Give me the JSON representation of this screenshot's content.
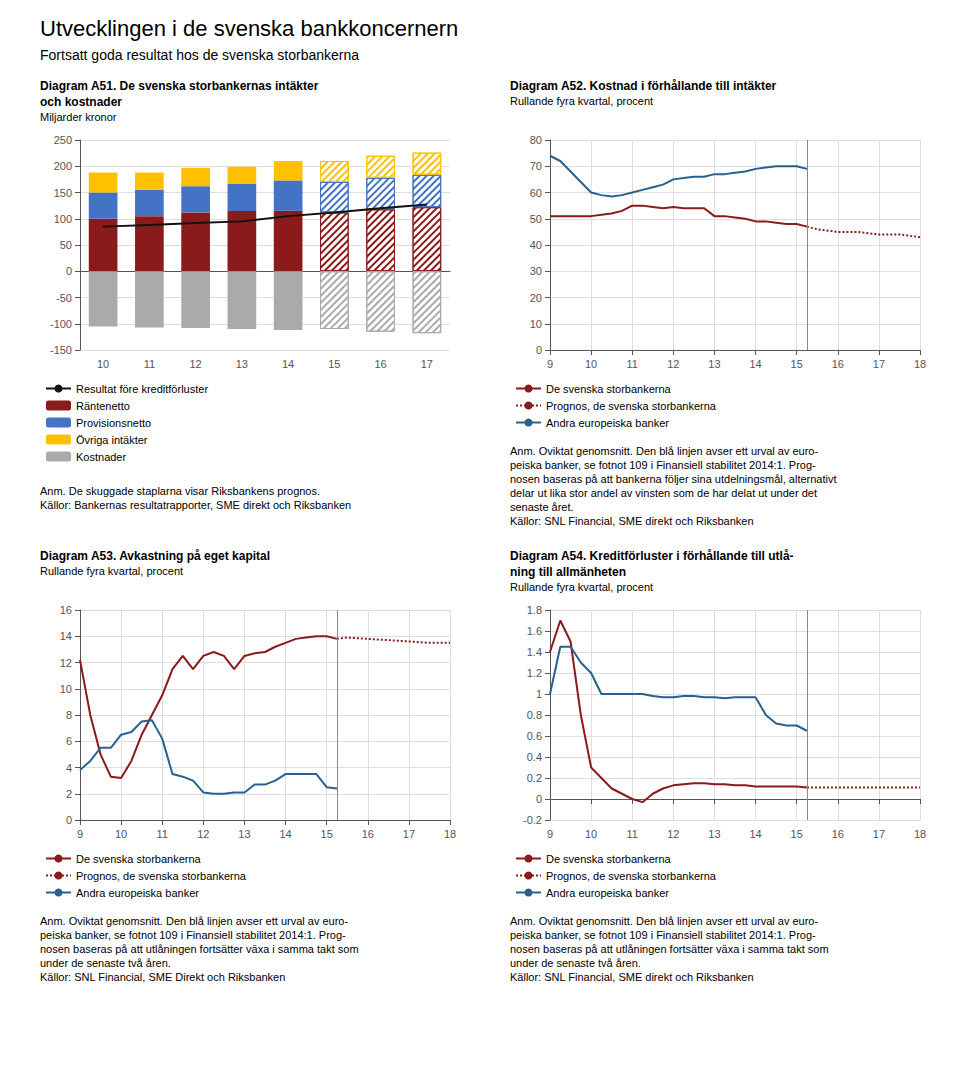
{
  "title": "Utvecklingen i de svenska bankkoncernern",
  "subtitle": "Fortsatt goda resultat hos de svenska storbankerna",
  "chart_data": [
    {
      "type": "bar",
      "title": "Diagram A51. De svenska storbankernas intäkter\noch kostnader",
      "subtitle": "Miljarder kronor",
      "categories": [
        "10",
        "11",
        "12",
        "13",
        "14",
        "15",
        "16",
        "17"
      ],
      "stacked": true,
      "forecast_from": "15",
      "series": [
        {
          "name": "Resultat före kreditförluster",
          "type": "line",
          "color": "#111111",
          "line_style": "solid",
          "values": [
            85,
            88,
            92,
            95,
            105,
            112,
            120,
            127
          ]
        },
        {
          "name": "Räntenetto",
          "color": "#8b1a1a",
          "values": [
            100,
            105,
            112,
            115,
            115,
            112,
            118,
            122
          ]
        },
        {
          "name": "Provisionsnetto",
          "color": "#4472c4",
          "values": [
            50,
            50,
            50,
            52,
            58,
            58,
            60,
            62
          ]
        },
        {
          "name": "Övriga intäkter",
          "color": "#ffc000",
          "values": [
            38,
            33,
            35,
            32,
            37,
            40,
            42,
            42
          ]
        },
        {
          "name": "Kostnader",
          "color": "#aaaaaa",
          "values": [
            -105,
            -107,
            -108,
            -110,
            -112,
            -110,
            -115,
            -118
          ]
        }
      ],
      "ylim": [
        -150,
        250
      ],
      "yticks": [
        -150,
        -100,
        -50,
        0,
        50,
        100,
        150,
        200,
        250
      ],
      "grid": "y",
      "legend": "bottom",
      "annotations": [
        "Anm. De skuggade staplarna visar Riksbankens prognos.",
        "Källor: Bankernas resultatrapporter, SME direkt och Riksbanken"
      ]
    },
    {
      "type": "line",
      "title": "Diagram A52. Kostnad i förhållande till intäkter",
      "subtitle": "Rullande fyra kvartal, procent",
      "forecast_from": 15.25,
      "series": [
        {
          "name": "De svenska storbankerna",
          "color": "#8b1a1a",
          "line_style": "solid",
          "x": [
            9.0,
            9.25,
            9.5,
            9.75,
            10.0,
            10.25,
            10.5,
            10.75,
            11.0,
            11.25,
            11.5,
            11.75,
            12.0,
            12.25,
            12.5,
            12.75,
            13.0,
            13.25,
            13.5,
            13.75,
            14.0,
            14.25,
            14.5,
            14.75,
            15.0,
            15.25
          ],
          "values": [
            51,
            51,
            51,
            51,
            51,
            51.5,
            52,
            53,
            55,
            55,
            54.5,
            54,
            54.5,
            54,
            54,
            54,
            51,
            51,
            50.5,
            50,
            49,
            49,
            48.5,
            48,
            48,
            47
          ]
        },
        {
          "name": "Prognos, de svenska storbankerna",
          "color": "#8b1a1a",
          "line_style": "dotted",
          "x": [
            15.25,
            15.5,
            16.0,
            16.5,
            17.0,
            17.5,
            18.0
          ],
          "values": [
            47,
            46,
            45,
            45,
            44,
            44,
            43
          ]
        },
        {
          "name": "Andra europeiska banker",
          "color": "#2a6090",
          "line_style": "solid",
          "x": [
            9.0,
            9.25,
            9.5,
            9.75,
            10.0,
            10.25,
            10.5,
            10.75,
            11.0,
            11.25,
            11.5,
            11.75,
            12.0,
            12.25,
            12.5,
            12.75,
            13.0,
            13.25,
            13.5,
            13.75,
            14.0,
            14.25,
            14.5,
            14.75,
            15.0,
            15.25
          ],
          "values": [
            74,
            72,
            68,
            64,
            60,
            59,
            58.5,
            59,
            60,
            61,
            62,
            63,
            65,
            65.5,
            66,
            66,
            67,
            67,
            67.5,
            68,
            69,
            69.5,
            70,
            70,
            70,
            69
          ]
        }
      ],
      "xlim": [
        9,
        18
      ],
      "xticks": [
        9,
        10,
        11,
        12,
        13,
        14,
        15,
        16,
        17,
        18
      ],
      "ylim": [
        0,
        80
      ],
      "yticks": [
        0,
        10,
        20,
        30,
        40,
        50,
        60,
        70,
        80
      ],
      "grid": true,
      "legend": "bottom",
      "annotations": [
        "Anm. Oviktat genomsnitt. Den blå linjen avser ett urval av euro-",
        "peiska banker, se fotnot 109 i Finansiell stabilitet 2014:1. Prog-",
        "nosen baseras på att bankerna följer sina utdelningsmål, alternativt",
        "delar ut lika stor andel av vinsten som de har delat ut under det",
        "senaste året.",
        "Källor: SNL Financial, SME direkt och Riksbanken"
      ]
    },
    {
      "type": "line",
      "title": "Diagram A53. Avkastning på eget kapital",
      "subtitle": "Rullande fyra kvartal, procent",
      "forecast_from": 15.25,
      "series": [
        {
          "name": "De svenska storbankerna",
          "color": "#8b1a1a",
          "line_style": "solid",
          "x": [
            9.0,
            9.25,
            9.5,
            9.75,
            10.0,
            10.25,
            10.5,
            10.75,
            11.0,
            11.25,
            11.5,
            11.75,
            12.0,
            12.25,
            12.5,
            12.75,
            13.0,
            13.25,
            13.5,
            13.75,
            14.0,
            14.25,
            14.5,
            14.75,
            15.0,
            15.25
          ],
          "values": [
            12.2,
            8.0,
            5.0,
            3.3,
            3.2,
            4.5,
            6.5,
            8.0,
            9.5,
            11.5,
            12.5,
            11.5,
            12.5,
            12.8,
            12.5,
            11.5,
            12.5,
            12.7,
            12.8,
            13.2,
            13.5,
            13.8,
            13.9,
            14.0,
            14.0,
            13.8
          ]
        },
        {
          "name": "Prognos, de svenska storbankerna",
          "color": "#8b1a1a",
          "line_style": "dotted",
          "x": [
            15.25,
            15.5,
            16.0,
            16.5,
            17.0,
            17.5,
            18.0
          ],
          "values": [
            13.8,
            13.9,
            13.8,
            13.7,
            13.6,
            13.5,
            13.5
          ]
        },
        {
          "name": "Andra europeiska banker",
          "color": "#2a6090",
          "line_style": "solid",
          "x": [
            9.0,
            9.25,
            9.5,
            9.75,
            10.0,
            10.25,
            10.5,
            10.75,
            11.0,
            11.25,
            11.5,
            11.75,
            12.0,
            12.25,
            12.5,
            12.75,
            13.0,
            13.25,
            13.5,
            13.75,
            14.0,
            14.25,
            14.5,
            14.75,
            15.0,
            15.25
          ],
          "values": [
            3.8,
            4.5,
            5.5,
            5.5,
            6.5,
            6.7,
            7.5,
            7.6,
            6.2,
            3.5,
            3.3,
            3.0,
            2.1,
            2.0,
            2.0,
            2.1,
            2.1,
            2.7,
            2.7,
            3.0,
            3.5,
            3.5,
            3.5,
            3.5,
            2.5,
            2.4
          ]
        }
      ],
      "xlim": [
        9,
        18
      ],
      "xticks": [
        9,
        10,
        11,
        12,
        13,
        14,
        15,
        16,
        17,
        18
      ],
      "ylim": [
        0,
        16
      ],
      "yticks": [
        0,
        2,
        4,
        6,
        8,
        10,
        12,
        14,
        16
      ],
      "grid": true,
      "legend": "bottom",
      "annotations": [
        "Anm. Oviktat genomsnitt. Den blå linjen avser ett urval av euro-",
        "peiska banker, se fotnot 109 i Finansiell stabilitet 2014:1. Prog-",
        "nosen baseras på att utlåningen fortsätter växa i samma takt som",
        "under de senaste två åren.",
        "Källor: SNL Financial, SME Direkt och Riksbanken"
      ]
    },
    {
      "type": "line",
      "title": "Diagram A54. Kreditförluster i förhållande till utlå-\nning till allmänheten",
      "subtitle": "Rullande fyra kvartal, procent",
      "forecast_from": 15.25,
      "series": [
        {
          "name": "De svenska storbankerna",
          "color": "#8b1a1a",
          "line_style": "solid",
          "x": [
            9.0,
            9.25,
            9.5,
            9.75,
            10.0,
            10.25,
            10.5,
            10.75,
            11.0,
            11.25,
            11.5,
            11.75,
            12.0,
            12.25,
            12.5,
            12.75,
            13.0,
            13.25,
            13.5,
            13.75,
            14.0,
            14.25,
            14.5,
            14.75,
            15.0,
            15.25
          ],
          "values": [
            1.4,
            1.7,
            1.5,
            0.8,
            0.3,
            0.2,
            0.1,
            0.05,
            0.0,
            -0.03,
            0.05,
            0.1,
            0.13,
            0.14,
            0.15,
            0.15,
            0.14,
            0.14,
            0.13,
            0.13,
            0.12,
            0.12,
            0.12,
            0.12,
            0.12,
            0.11
          ]
        },
        {
          "name": "Prognos, de svenska storbankerna",
          "color": "#8b1a1a",
          "line_style": "dotted",
          "x": [
            15.25,
            15.5,
            16.0,
            16.5,
            17.0,
            17.5,
            18.0
          ],
          "values": [
            0.11,
            0.11,
            0.11,
            0.11,
            0.11,
            0.11,
            0.11
          ]
        },
        {
          "name": "Andra europeiska banker",
          "color": "#2a6090",
          "line_style": "solid",
          "x": [
            9.0,
            9.25,
            9.5,
            9.75,
            10.0,
            10.25,
            10.5,
            10.75,
            11.0,
            11.25,
            11.5,
            11.75,
            12.0,
            12.25,
            12.5,
            12.75,
            13.0,
            13.25,
            13.5,
            13.75,
            14.0,
            14.25,
            14.5,
            14.75,
            15.0,
            15.25
          ],
          "values": [
            1.0,
            1.45,
            1.45,
            1.3,
            1.2,
            1.0,
            1.0,
            1.0,
            1.0,
            1.0,
            0.98,
            0.97,
            0.97,
            0.98,
            0.98,
            0.97,
            0.97,
            0.96,
            0.97,
            0.97,
            0.97,
            0.8,
            0.72,
            0.7,
            0.7,
            0.65
          ]
        }
      ],
      "xlim": [
        9,
        18
      ],
      "xticks": [
        9,
        10,
        11,
        12,
        13,
        14,
        15,
        16,
        17,
        18
      ],
      "ylim": [
        -0.2,
        1.8
      ],
      "yticks": [
        -0.2,
        0,
        0.2,
        0.4,
        0.6,
        0.8,
        1.0,
        1.2,
        1.4,
        1.6,
        1.8
      ],
      "grid": true,
      "legend": "bottom",
      "annotations": [
        "Anm. Oviktat genomsnitt. Den blå linjen avser ett urval av euro-",
        "peiska banker, se fotnot 109 i Finansiell stabilitet 2014:1. Prog-",
        "nosen baseras på att utlåningen fortsätter växa i samma takt som",
        "under de senaste två åren.",
        "Källor: SNL Financial, SME direkt och Riksbanken"
      ]
    }
  ]
}
